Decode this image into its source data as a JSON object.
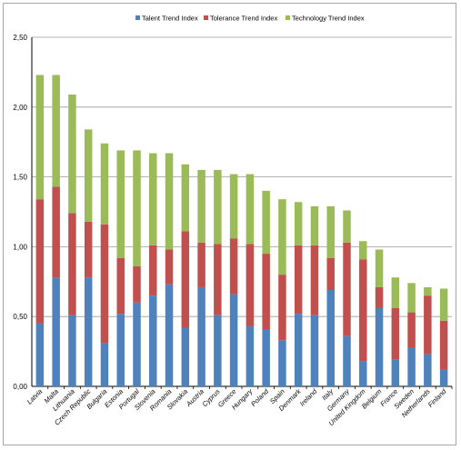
{
  "chart_data": {
    "type": "bar",
    "stacked": true,
    "categories": [
      "Latvia",
      "Malta",
      "Lithuania",
      "Czech Republic",
      "Bulgaria",
      "Estonia",
      "Portugal",
      "Slovenia",
      "Romania",
      "Slovakia",
      "Austria",
      "Cyprus",
      "Greece",
      "Hungary",
      "Poland",
      "Spain",
      "Denmark",
      "Ireland",
      "Italy",
      "Germany",
      "United Kingdom",
      "Belgium",
      "France",
      "Sweden",
      "Netherlands",
      "Finland"
    ],
    "series": [
      {
        "name": "Talent Trend Index",
        "color": "#4f81bd",
        "values": [
          0.45,
          0.78,
          0.51,
          0.78,
          0.31,
          0.52,
          0.6,
          0.65,
          0.73,
          0.42,
          0.71,
          0.51,
          0.66,
          0.43,
          0.41,
          0.33,
          0.52,
          0.51,
          0.69,
          0.36,
          0.18,
          0.56,
          0.19,
          0.28,
          0.23,
          0.12
        ]
      },
      {
        "name": "Tolerance Trend Index",
        "color": "#c0504d",
        "values": [
          0.89,
          0.65,
          0.73,
          0.4,
          0.85,
          0.4,
          0.26,
          0.36,
          0.25,
          0.69,
          0.32,
          0.51,
          0.4,
          0.59,
          0.54,
          0.47,
          0.49,
          0.5,
          0.23,
          0.67,
          0.73,
          0.15,
          0.37,
          0.25,
          0.42,
          0.35
        ]
      },
      {
        "name": "Technology Trend Index",
        "color": "#9bbb59",
        "values": [
          0.89,
          0.8,
          0.85,
          0.66,
          0.58,
          0.77,
          0.83,
          0.66,
          0.69,
          0.48,
          0.52,
          0.53,
          0.46,
          0.5,
          0.45,
          0.54,
          0.31,
          0.28,
          0.37,
          0.23,
          0.13,
          0.27,
          0.22,
          0.21,
          0.06,
          0.23
        ]
      }
    ],
    "yticks": [
      "0,00",
      "0,50",
      "1,00",
      "1,50",
      "2,00",
      "2,50"
    ],
    "ylim": [
      0,
      2.5
    ],
    "grid": true,
    "legend_position": "top"
  }
}
